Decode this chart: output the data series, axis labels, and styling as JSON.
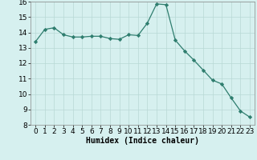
{
  "x": [
    0,
    1,
    2,
    3,
    4,
    5,
    6,
    7,
    8,
    9,
    10,
    11,
    12,
    13,
    14,
    15,
    16,
    17,
    18,
    19,
    20,
    21,
    22,
    23
  ],
  "y": [
    13.4,
    14.2,
    14.3,
    13.85,
    13.7,
    13.7,
    13.75,
    13.75,
    13.6,
    13.55,
    13.85,
    13.8,
    14.6,
    15.85,
    15.8,
    13.5,
    12.8,
    12.2,
    11.55,
    10.9,
    10.65,
    9.75,
    8.9,
    8.5
  ],
  "line_color": "#2e7d6e",
  "marker": "D",
  "marker_size": 2.2,
  "bg_color": "#d6f0ef",
  "grid_color": "#b8d8d5",
  "xlabel": "Humidex (Indice chaleur)",
  "ylim": [
    8,
    16
  ],
  "xlim": [
    -0.5,
    23.5
  ],
  "yticks": [
    8,
    9,
    10,
    11,
    12,
    13,
    14,
    15,
    16
  ],
  "xticks": [
    0,
    1,
    2,
    3,
    4,
    5,
    6,
    7,
    8,
    9,
    10,
    11,
    12,
    13,
    14,
    15,
    16,
    17,
    18,
    19,
    20,
    21,
    22,
    23
  ],
  "xlabel_fontsize": 7,
  "tick_fontsize": 6.5
}
